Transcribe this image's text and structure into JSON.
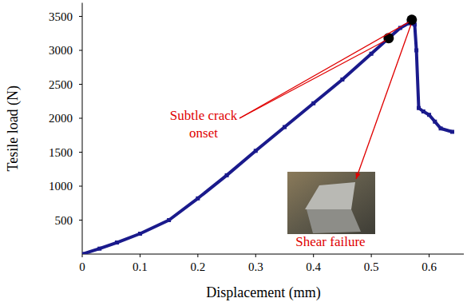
{
  "chart_data": {
    "type": "line",
    "x_label": "Displacement (mm)",
    "y_label": "Tesile load (N)",
    "xlim": [
      0,
      0.66
    ],
    "xticks": [
      0,
      0.1,
      0.2,
      0.3,
      0.4,
      0.5,
      0.6
    ],
    "ylim": [
      0,
      3700
    ],
    "yticks": [
      500,
      1000,
      1500,
      2000,
      2500,
      3000,
      3500
    ],
    "grid": false,
    "series": [
      {
        "type": "line",
        "color": "#1a1a8c",
        "marker": "square",
        "line_style": "solid",
        "x": [
          0,
          0.03,
          0.06,
          0.1,
          0.15,
          0.2,
          0.25,
          0.3,
          0.35,
          0.4,
          0.45,
          0.5,
          0.53,
          0.55,
          0.565,
          0.575,
          0.578,
          0.582,
          0.59,
          0.6,
          0.61,
          0.62,
          0.64
        ],
        "values": [
          0,
          80,
          170,
          300,
          500,
          820,
          1160,
          1520,
          1870,
          2220,
          2570,
          2950,
          3180,
          3330,
          3400,
          3380,
          3000,
          2150,
          2100,
          2050,
          1950,
          1850,
          1800
        ]
      },
      {
        "type": "scatter",
        "color": "#000000",
        "marker": "circle",
        "x": [
          0.53,
          0.57
        ],
        "values": [
          3180,
          3450
        ]
      }
    ],
    "annotations": [
      {
        "text": "Subtle crack onset",
        "color": "#e00000"
      },
      {
        "text": "Shear failure",
        "color": "#e00000"
      }
    ]
  }
}
